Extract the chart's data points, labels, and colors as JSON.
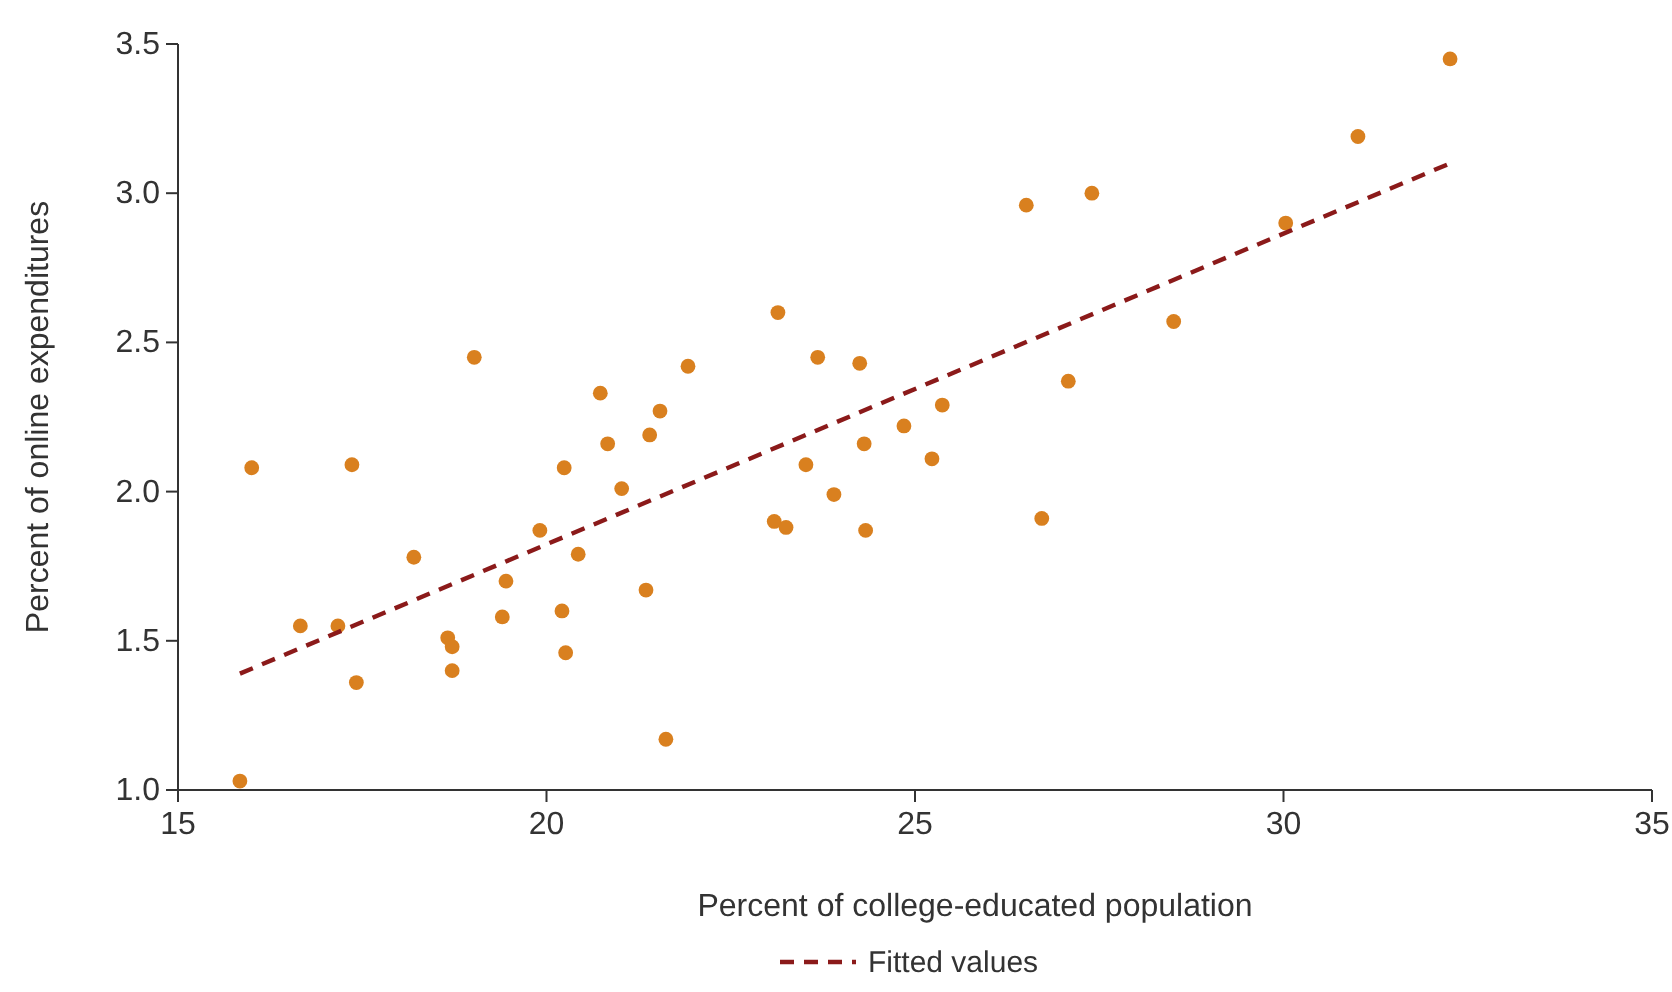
{
  "chart_data": {
    "type": "scatter",
    "xlabel": "Percent of college-educated population",
    "ylabel": "Percent of online expenditures",
    "xlim": [
      15,
      35
    ],
    "xticks": [
      15,
      20,
      25,
      30,
      35
    ],
    "ylim": [
      1.0,
      3.5
    ],
    "yticks": [
      {
        "value": 1.0,
        "label": "1.0"
      },
      {
        "value": 1.5,
        "label": "1.5"
      },
      {
        "value": 2.0,
        "label": "2.0"
      },
      {
        "value": 2.5,
        "label": "2.5"
      },
      {
        "value": 3.0,
        "label": "3.0"
      },
      {
        "value": 3.5,
        "label": "3.5"
      }
    ],
    "grid": false,
    "legend": "bottom",
    "series": [
      {
        "color": "#d9801f",
        "marker": "circle",
        "x": [
          15.84,
          16.0,
          16.66,
          17.17,
          17.36,
          17.42,
          18.2,
          18.66,
          18.72,
          18.72,
          19.02,
          19.45,
          19.4,
          19.91,
          20.24,
          20.21,
          20.26,
          20.43,
          20.73,
          20.83,
          21.02,
          21.35,
          21.4,
          21.54,
          21.62,
          21.92,
          23.09,
          23.14,
          23.25,
          23.52,
          23.68,
          23.9,
          24.25,
          24.31,
          24.33,
          24.85,
          25.23,
          25.37,
          26.51,
          26.72,
          27.08,
          27.4,
          28.51,
          30.03,
          31.01,
          32.26
        ],
        "values": [
          1.03,
          2.08,
          1.55,
          1.55,
          2.09,
          1.36,
          1.78,
          1.51,
          1.48,
          1.4,
          2.45,
          1.7,
          1.58,
          1.87,
          2.08,
          1.6,
          1.46,
          1.79,
          2.33,
          2.16,
          2.01,
          1.67,
          2.19,
          2.27,
          1.17,
          2.42,
          1.9,
          2.6,
          1.88,
          2.09,
          2.45,
          1.99,
          2.43,
          2.16,
          1.87,
          2.22,
          2.11,
          2.29,
          2.96,
          1.91,
          2.37,
          3.0,
          2.57,
          2.9,
          3.19,
          3.45
        ]
      },
      {
        "type": "line",
        "name": "Fitted values",
        "color": "#8b1a1a",
        "line_style": "dashed",
        "marker": "none",
        "x": [
          15.84,
          32.26
        ],
        "values": [
          1.39,
          3.1
        ]
      }
    ]
  }
}
